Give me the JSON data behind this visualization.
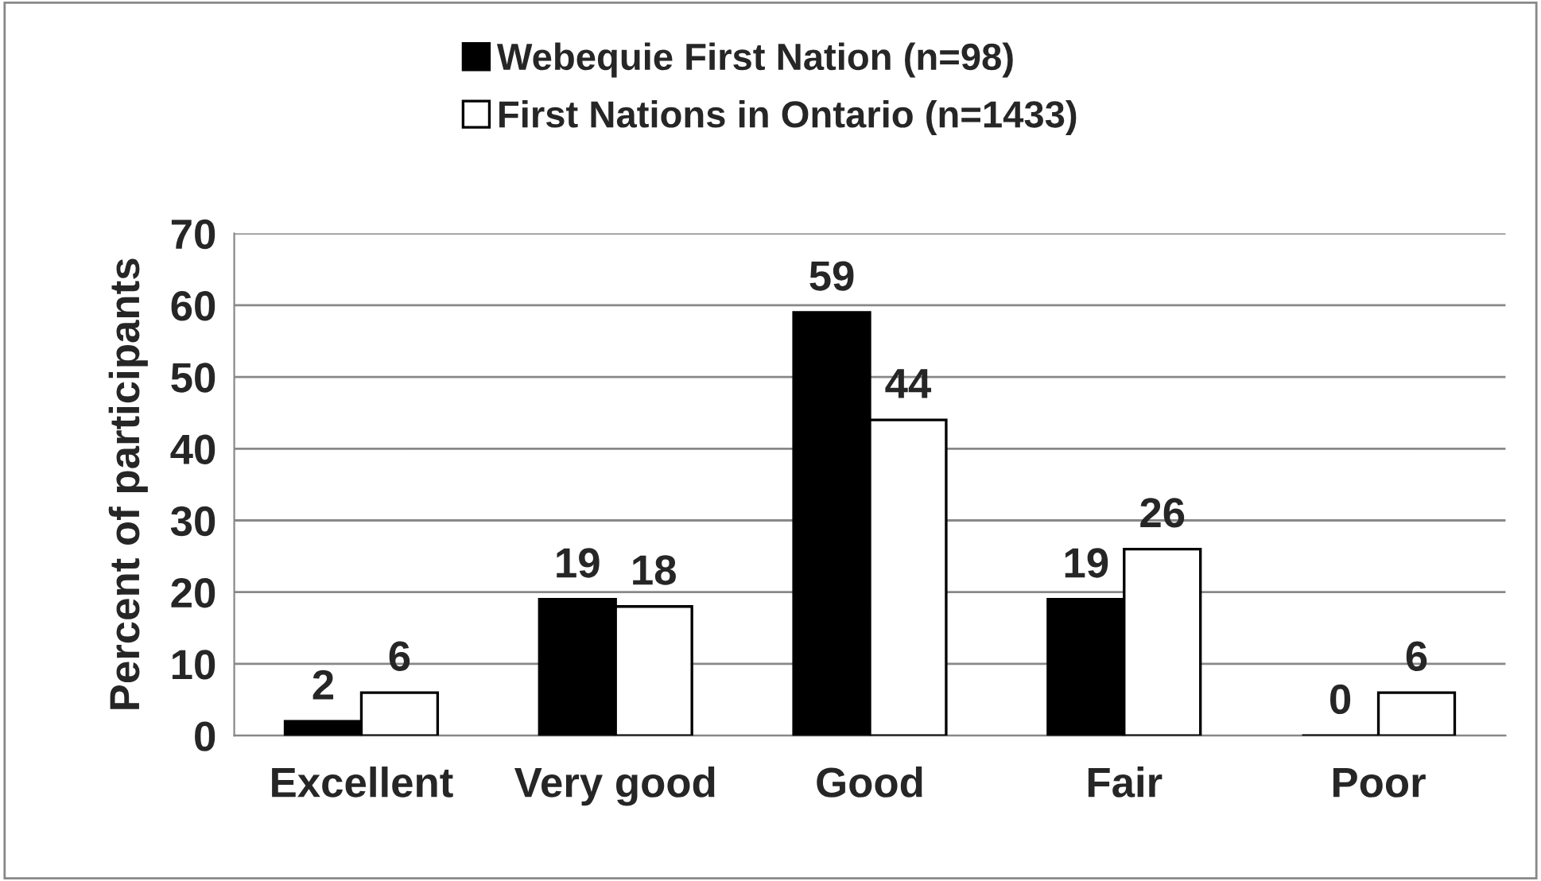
{
  "chart_data": {
    "type": "bar",
    "ylabel": "Percent of participants",
    "categories": [
      "Excellent",
      "Very good",
      "Good",
      "Fair",
      "Poor"
    ],
    "series": [
      {
        "name": "Webequie First Nation (n=98)",
        "color": "#000000",
        "values": [
          2,
          19,
          59,
          19,
          0
        ]
      },
      {
        "name": "First Nations in Ontario (n=1433)",
        "color": "#ffffff",
        "values": [
          6,
          18,
          44,
          26,
          6
        ]
      }
    ],
    "ylim": [
      0,
      70
    ],
    "yticks": [
      0,
      10,
      20,
      30,
      40,
      50,
      60,
      70
    ],
    "grid": "y",
    "legend": "top",
    "data_labels": true
  }
}
